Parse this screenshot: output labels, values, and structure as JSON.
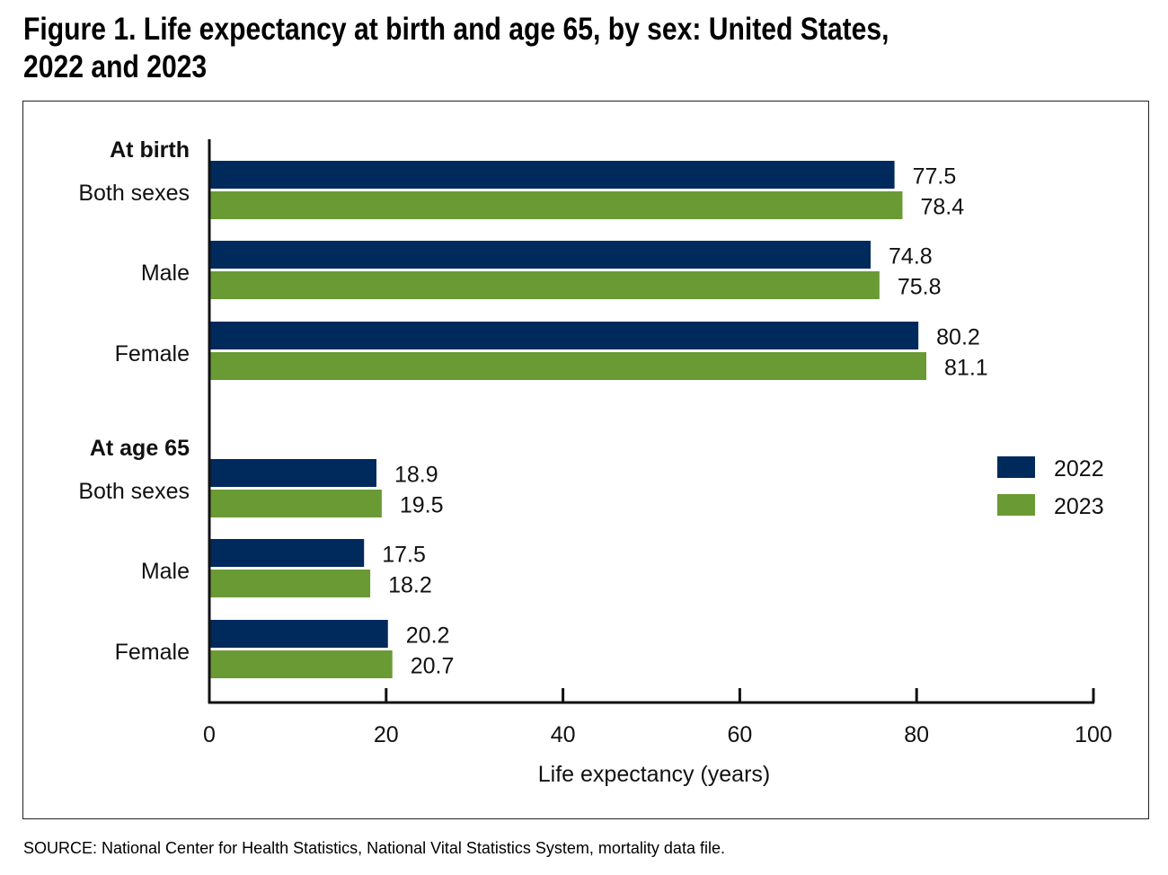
{
  "title_line1": "Figure 1. Life expectancy at birth and age 65, by sex: United States,",
  "title_line2": "2022 and 2023",
  "source": "SOURCE: National Center for Health Statistics, National Vital Statistics System, mortality data file.",
  "colors": {
    "2022": "#012a5c",
    "2023": "#6a9a34"
  },
  "chart_data": {
    "type": "bar",
    "orientation": "horizontal",
    "xlabel": "Life expectancy (years)",
    "xlim": [
      0,
      100
    ],
    "xticks": [
      0,
      20,
      40,
      60,
      80,
      100
    ],
    "grid": false,
    "legend_position": "right",
    "groups": [
      {
        "label": "At birth",
        "categories": [
          "Both sexes",
          "Male",
          "Female"
        ]
      },
      {
        "label": "At age 65",
        "categories": [
          "Both sexes",
          "Male",
          "Female"
        ]
      }
    ],
    "series": [
      {
        "name": "2022",
        "values": [
          [
            77.5,
            74.8,
            80.2
          ],
          [
            18.9,
            17.5,
            20.2
          ]
        ]
      },
      {
        "name": "2023",
        "values": [
          [
            78.4,
            75.8,
            81.1
          ],
          [
            19.5,
            18.2,
            20.7
          ]
        ]
      }
    ]
  }
}
